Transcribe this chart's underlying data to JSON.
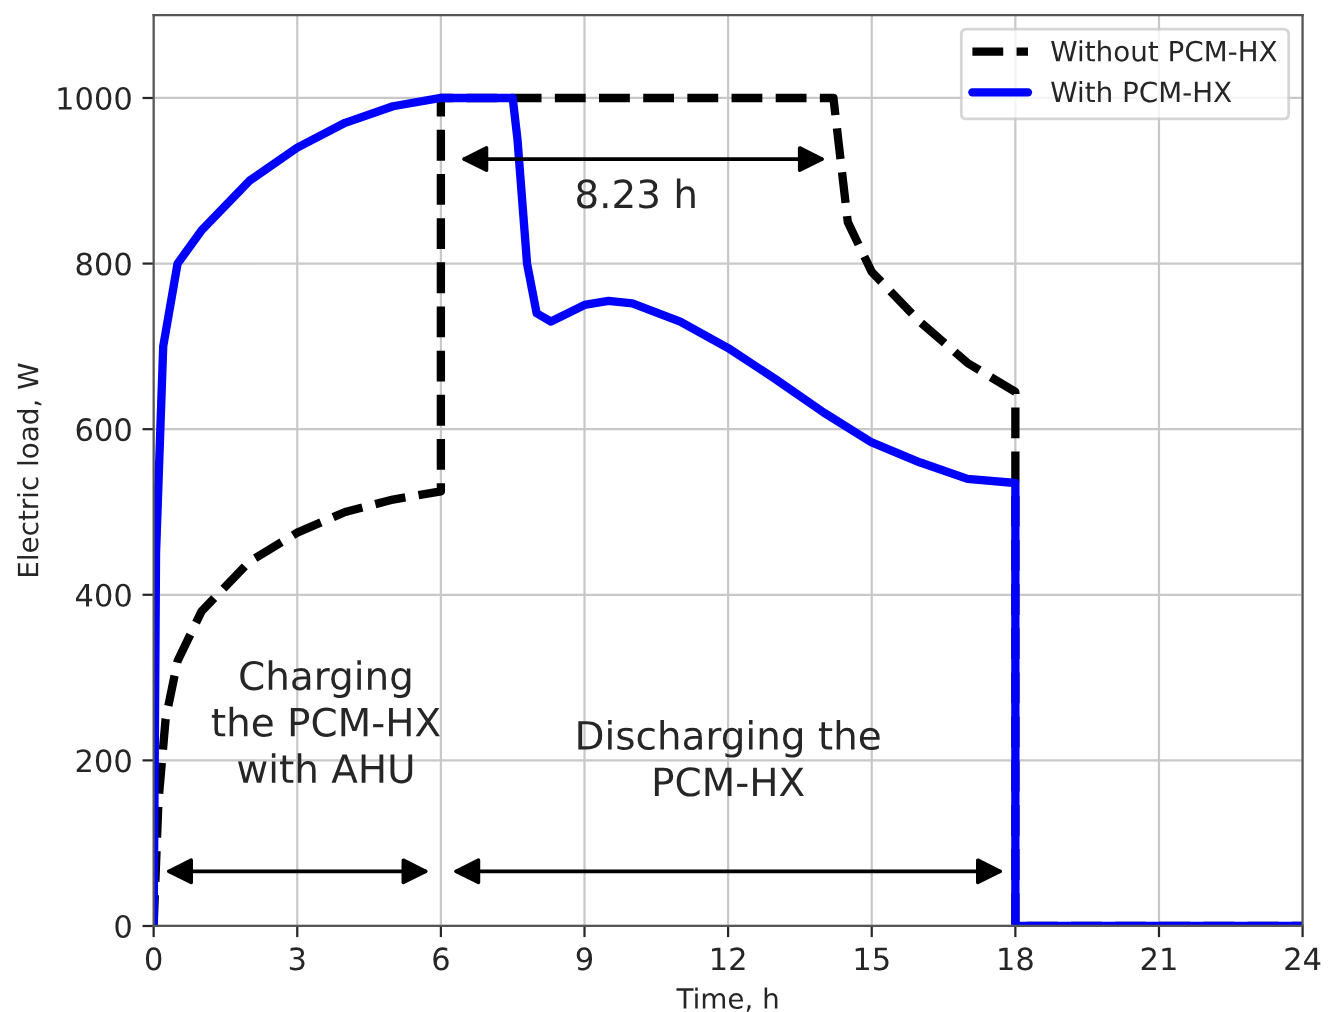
{
  "chart_data": {
    "type": "line",
    "xlabel": "Time, h",
    "ylabel": "Electric load, W",
    "xlim": [
      0,
      24
    ],
    "xticks": [
      0,
      3,
      6,
      9,
      12,
      15,
      18,
      21,
      24
    ],
    "ylim": [
      0,
      1100
    ],
    "yticks": [
      0,
      200,
      400,
      600,
      800,
      1000
    ],
    "grid": true,
    "legend": "top right",
    "series": [
      {
        "name": "Without PCM-HX",
        "color": "#000000",
        "line_style": "dashed",
        "x": [
          0,
          0.1,
          0.25,
          0.5,
          1,
          2,
          3,
          4,
          5,
          6,
          6,
          14.2,
          14.5,
          15,
          16,
          17,
          18,
          18,
          24
        ],
        "values": [
          0,
          150,
          250,
          320,
          380,
          440,
          475,
          500,
          515,
          525,
          1000,
          1000,
          850,
          790,
          730,
          680,
          645,
          0,
          0
        ]
      },
      {
        "name": "With PCM-HX",
        "color": "#0000ff",
        "line_style": "solid",
        "x": [
          0,
          0.05,
          0.2,
          0.5,
          1,
          2,
          3,
          4,
          5,
          6,
          7.5,
          7.6,
          7.8,
          8,
          8.3,
          9,
          9.5,
          10,
          11,
          12,
          13,
          14,
          15,
          16,
          17,
          18,
          18,
          24
        ],
        "values": [
          0,
          450,
          700,
          800,
          840,
          900,
          940,
          970,
          990,
          1000,
          1000,
          950,
          800,
          740,
          730,
          750,
          755,
          752,
          730,
          698,
          660,
          620,
          584,
          560,
          540,
          535,
          0,
          0
        ]
      }
    ],
    "annotations": [
      "8.23 h",
      "Charging\nthe PCM-HX\nwith AHU",
      "Discharging the\nPCM-HX"
    ]
  }
}
